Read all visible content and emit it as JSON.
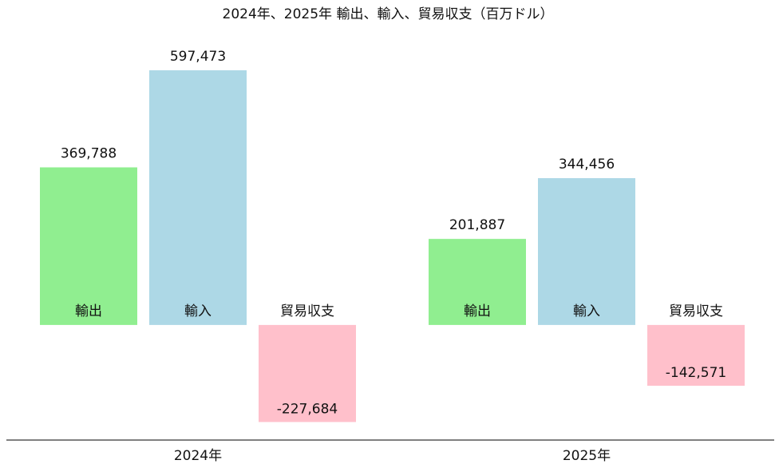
{
  "chart_data": {
    "type": "bar",
    "title": "2024年、2025年 輸出、輸入、貿易収支（百万ドル）",
    "categories": [
      "2024年",
      "2025年"
    ],
    "series": [
      {
        "name": "輸出",
        "color": "#90ee90",
        "values": [
          369788,
          201887
        ],
        "value_labels": [
          "369,788",
          "201,887"
        ]
      },
      {
        "name": "輸入",
        "color": "#add8e6",
        "values": [
          597473,
          344456
        ],
        "value_labels": [
          "597,473",
          "344,456"
        ]
      },
      {
        "name": "貿易収支",
        "color": "#ffc0cb",
        "values": [
          -227684,
          -142571
        ],
        "value_labels": [
          "-227,684",
          "-142,571"
        ]
      }
    ],
    "ylim": [
      -270000,
      620000
    ]
  }
}
